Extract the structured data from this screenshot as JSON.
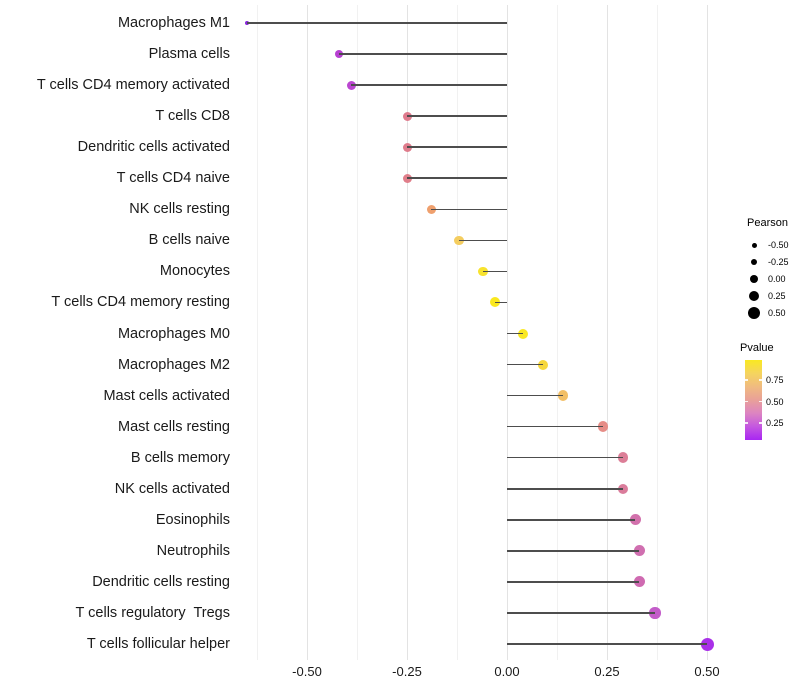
{
  "style": {
    "background": "#ffffff",
    "stem_color": "#4d4d4d",
    "grid_major_color": "#e3e3e3",
    "grid_minor_color": "#f1f1f1",
    "label_color": "#1a1a1a",
    "legend_dot_color": "#000000"
  },
  "legend": {
    "pearson": {
      "title": "Pearson",
      "items": [
        {
          "label": "-0.50",
          "diameter": 5
        },
        {
          "label": "-0.25",
          "diameter": 6.5
        },
        {
          "label": "0.00",
          "diameter": 8.5
        },
        {
          "label": "0.25",
          "diameter": 10.5
        },
        {
          "label": "0.50",
          "diameter": 12
        }
      ]
    },
    "pvalue": {
      "title": "Pvalue",
      "tick_labels": [
        "0.75",
        "0.50",
        "0.25"
      ],
      "gradient_top_to_bottom": [
        "#f9e921",
        "#f5d45f",
        "#f0bb80",
        "#e9a099",
        "#dc84c2",
        "#c457e0",
        "#a826f2"
      ]
    }
  },
  "chart_data": {
    "type": "lollipop",
    "title": "",
    "xlabel": "",
    "ylabel": "",
    "size_encoding": "Pearson",
    "color_encoding": "Pvalue",
    "baseline": 0,
    "x_axis": {
      "tick_labels": [
        "-0.50",
        "-0.25",
        "0.00",
        "0.25",
        "0.50"
      ],
      "tick_values": [
        -0.5,
        -0.25,
        0,
        0.25,
        0.5
      ],
      "minor_values": [
        -0.625,
        -0.375,
        -0.125,
        0.125,
        0.375
      ],
      "xlim": [
        -0.6725,
        0.5525
      ]
    },
    "categories": [
      "Macrophages M1",
      "Plasma cells",
      "T cells CD4 memory activated",
      "T cells CD8",
      "Dendritic cells activated",
      "T cells CD4 naive",
      "NK cells resting",
      "B cells naive",
      "Monocytes",
      "T cells CD4 memory resting",
      "Macrophages M0",
      "Macrophages M2",
      "Mast cells activated",
      "Mast cells resting",
      "B cells memory",
      "NK cells activated",
      "Eosinophils",
      "Neutrophils",
      "Dendritic cells resting",
      "T cells regulatory  Tregs",
      "T cells follicular helper"
    ],
    "points": [
      {
        "category": "Macrophages M1",
        "pearson": -0.65,
        "color": "#8a25dd",
        "diameter": 4
      },
      {
        "category": "Plasma cells",
        "pearson": -0.42,
        "color": "#b840d2",
        "diameter": 8
      },
      {
        "category": "T cells CD4 memory activated",
        "pearson": -0.39,
        "color": "#bb47d1",
        "diameter": 9
      },
      {
        "category": "T cells CD8",
        "pearson": -0.25,
        "color": "#df7b8d",
        "diameter": 9
      },
      {
        "category": "Dendritic cells activated",
        "pearson": -0.25,
        "color": "#df7c8c",
        "diameter": 9
      },
      {
        "category": "T cells CD4 naive",
        "pearson": -0.25,
        "color": "#e07e8a",
        "diameter": 9
      },
      {
        "category": "NK cells resting",
        "pearson": -0.19,
        "color": "#efa06e",
        "diameter": 9
      },
      {
        "category": "B cells naive",
        "pearson": -0.12,
        "color": "#f4cd60",
        "diameter": 9.5
      },
      {
        "category": "Monocytes",
        "pearson": -0.06,
        "color": "#f8e32e",
        "diameter": 9.5
      },
      {
        "category": "T cells CD4 memory resting",
        "pearson": -0.03,
        "color": "#fae81e",
        "diameter": 10
      },
      {
        "category": "Macrophages M0",
        "pearson": 0.04,
        "color": "#f9e822",
        "diameter": 10
      },
      {
        "category": "Macrophages M2",
        "pearson": 0.09,
        "color": "#f6d73d",
        "diameter": 10
      },
      {
        "category": "Mast cells activated",
        "pearson": 0.14,
        "color": "#f2bf66",
        "diameter": 10.5
      },
      {
        "category": "Mast cells resting",
        "pearson": 0.24,
        "color": "#e68d87",
        "diameter": 10.5
      },
      {
        "category": "B cells memory",
        "pearson": 0.29,
        "color": "#dc7e97",
        "diameter": 10.5
      },
      {
        "category": "NK cells activated",
        "pearson": 0.29,
        "color": "#da7c9b",
        "diameter": 10.5
      },
      {
        "category": "Eosinophils",
        "pearson": 0.32,
        "color": "#d271ac",
        "diameter": 11
      },
      {
        "category": "Neutrophils",
        "pearson": 0.33,
        "color": "#d06fb0",
        "diameter": 11
      },
      {
        "category": "Dendritic cells resting",
        "pearson": 0.33,
        "color": "#cf6ab1",
        "diameter": 11
      },
      {
        "category": "T cells regulatory  Tregs",
        "pearson": 0.37,
        "color": "#c35cc9",
        "diameter": 11.5
      },
      {
        "category": "T cells follicular helper",
        "pearson": 0.5,
        "color": "#a930e8",
        "diameter": 13
      }
    ]
  }
}
